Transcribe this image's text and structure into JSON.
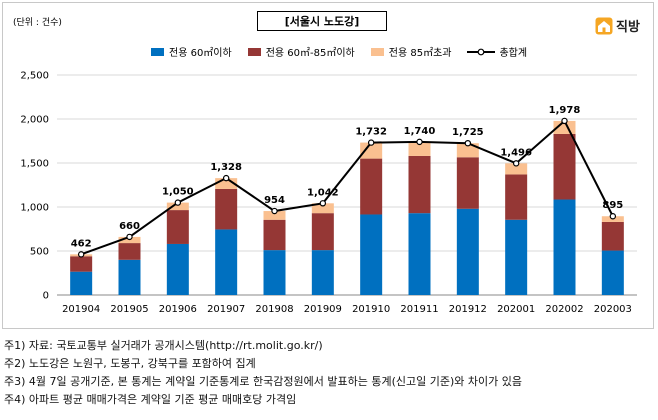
{
  "header": {
    "unit": "(단위 : 건수)",
    "title": "[서울시 노도강]",
    "brand": "직방"
  },
  "chart_data": {
    "type": "bar",
    "stacked": true,
    "categories": [
      "201904",
      "201905",
      "201906",
      "201907",
      "201908",
      "201909",
      "201910",
      "201911",
      "201912",
      "202001",
      "202002",
      "202003"
    ],
    "series": [
      {
        "name": "전용 60㎡이하",
        "kind": "bar",
        "color": "#0070C0",
        "values": [
          265,
          400,
          580,
          745,
          510,
          510,
          915,
          930,
          980,
          855,
          1085,
          505
        ]
      },
      {
        "name": "전용 60㎡-85㎡이하",
        "kind": "bar",
        "color": "#953735",
        "values": [
          175,
          190,
          385,
          460,
          345,
          420,
          635,
          650,
          585,
          515,
          745,
          325
        ]
      },
      {
        "name": "전용 85㎡초과",
        "kind": "bar",
        "color": "#FAC090",
        "values": [
          22,
          70,
          85,
          123,
          99,
          112,
          182,
          160,
          160,
          126,
          148,
          65
        ]
      },
      {
        "name": "총합계",
        "kind": "line",
        "color": "#000000",
        "values": [
          462,
          660,
          1050,
          1328,
          954,
          1042,
          1732,
          1740,
          1725,
          1496,
          1978,
          895
        ]
      }
    ],
    "data_labels": [
      "462",
      "660",
      "1,050",
      "1,328",
      "954",
      "1,042",
      "1,732",
      "1,740",
      "1,725",
      "1,496",
      "1,978",
      "895"
    ],
    "yticks": [
      "0",
      "500",
      "1,000",
      "1,500",
      "2,000",
      "2,500"
    ],
    "ylim": [
      0,
      2500
    ],
    "grid": true,
    "legend_position": "top"
  },
  "notes": [
    "주1) 자료: 국토교통부 실거래가 공개시스템(http://rt.molit.go.kr/)",
    "주2) 노도강은 노원구, 도봉구, 강북구를 포함하여 집계",
    "주3) 4월 7일 공개기준, 본 통계는 계약일 기준통계로 한국감정원에서 발표하는 통계(신고일 기준)와 차이가 있음",
    "주4) 아파트 평균 매매가격은 계약일 기준 평균 매매호당 가격임"
  ]
}
